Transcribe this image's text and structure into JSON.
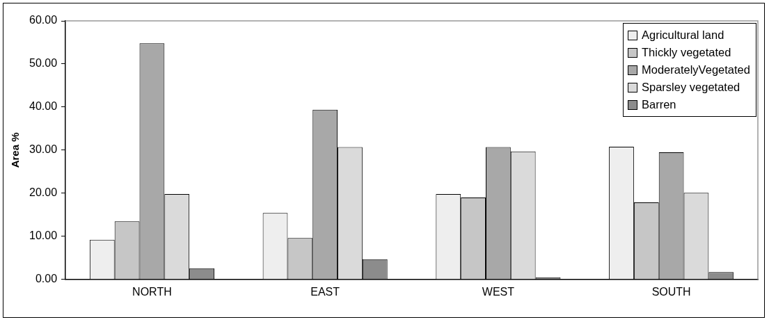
{
  "chart_data": {
    "type": "bar",
    "ylabel": "Area %",
    "categories": [
      "NORTH",
      "EAST",
      "WEST",
      "SOUTH"
    ],
    "series": [
      {
        "name": "Agricultural land",
        "color": "#eeeeee",
        "values": [
          9.2,
          15.4,
          19.8,
          30.8
        ]
      },
      {
        "name": "Thickly vegetated",
        "color": "#c6c6c6",
        "values": [
          13.5,
          9.6,
          19.0,
          17.9
        ]
      },
      {
        "name": "ModeratelyVegetated",
        "color": "#a8a8a8",
        "values": [
          54.8,
          39.4,
          30.7,
          29.5
        ]
      },
      {
        "name": "Sparsley vegetated",
        "color": "#dadada",
        "values": [
          19.8,
          30.7,
          29.7,
          20.1
        ]
      },
      {
        "name": "Barren",
        "color": "#8c8c8c",
        "values": [
          2.6,
          4.7,
          0.5,
          1.7
        ]
      }
    ],
    "ylim": [
      0,
      60
    ],
    "yticks": [
      {
        "value": 0,
        "label": "0.00"
      },
      {
        "value": 10,
        "label": "10.00"
      },
      {
        "value": 20,
        "label": "20.00"
      },
      {
        "value": 30,
        "label": "30.00"
      },
      {
        "value": 40,
        "label": "40.00"
      },
      {
        "value": 50,
        "label": "50.00"
      },
      {
        "value": 60,
        "label": "60.00"
      }
    ],
    "grid": false,
    "legend": "top right"
  }
}
